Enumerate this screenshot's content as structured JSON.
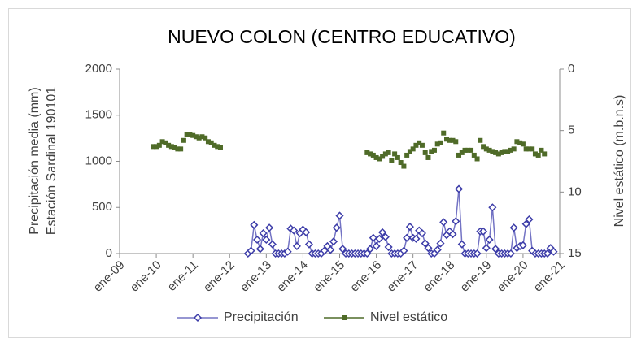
{
  "chart_data": {
    "type": "line",
    "title": "NUEVO COLON (CENTRO EDUCATIVO)",
    "y_label": [
      "Precipitación media (mm)",
      "Estación Sardinal 190101"
    ],
    "y2_label": "Nivel estático (m.b.n.s)",
    "xlim": [
      "2009-01",
      "2021-01"
    ],
    "xticks": [
      {
        "value": "2009-01",
        "label": "ene-09"
      },
      {
        "value": "2010-01",
        "label": "ene-10"
      },
      {
        "value": "2011-01",
        "label": "ene-11"
      },
      {
        "value": "2012-01",
        "label": "ene-12"
      },
      {
        "value": "2013-01",
        "label": "ene-13"
      },
      {
        "value": "2014-01",
        "label": "ene-14"
      },
      {
        "value": "2015-01",
        "label": "ene-15"
      },
      {
        "value": "2016-01",
        "label": "ene-16"
      },
      {
        "value": "2017-01",
        "label": "ene-17"
      },
      {
        "value": "2018-01",
        "label": "ene-18"
      },
      {
        "value": "2019-01",
        "label": "ene-19"
      },
      {
        "value": "2020-01",
        "label": "ene-20"
      },
      {
        "value": "2021-01",
        "label": "ene-21"
      }
    ],
    "ylim": [
      0,
      2000
    ],
    "yticks": [
      0,
      500,
      1000,
      1500,
      2000
    ],
    "y2lim": [
      15,
      0
    ],
    "y2ticks": [
      0,
      5,
      10,
      15
    ],
    "grid": false,
    "legend": "bottom",
    "series": [
      {
        "name": "Precipitación",
        "color": "#7373c4",
        "marker_color": "#3c3ca8",
        "marker": "diamond",
        "line": true,
        "x": [
          "2012-07",
          "2012-08",
          "2012-09",
          "2012-10",
          "2012-11",
          "2012-12",
          "2013-01",
          "2013-02",
          "2013-03",
          "2013-04",
          "2013-05",
          "2013-06",
          "2013-07",
          "2013-08",
          "2013-09",
          "2013-10",
          "2013-11",
          "2013-12",
          "2014-01",
          "2014-02",
          "2014-03",
          "2014-04",
          "2014-05",
          "2014-06",
          "2014-07",
          "2014-08",
          "2014-09",
          "2014-10",
          "2014-11",
          "2014-12",
          "2015-01",
          "2015-02",
          "2015-03",
          "2015-04",
          "2015-05",
          "2015-06",
          "2015-07",
          "2015-08",
          "2015-09",
          "2015-10",
          "2015-11",
          "2015-12",
          "2016-01",
          "2016-02",
          "2016-03",
          "2016-04",
          "2016-05",
          "2016-06",
          "2016-07",
          "2016-08",
          "2016-09",
          "2016-10",
          "2016-11",
          "2016-12",
          "2017-01",
          "2017-02",
          "2017-03",
          "2017-04",
          "2017-05",
          "2017-06",
          "2017-07",
          "2017-08",
          "2017-09",
          "2017-10",
          "2017-11",
          "2017-12",
          "2018-01",
          "2018-02",
          "2018-03",
          "2018-04",
          "2018-05",
          "2018-06",
          "2018-07",
          "2018-08",
          "2018-09",
          "2018-10",
          "2018-11",
          "2018-12",
          "2019-01",
          "2019-02",
          "2019-03",
          "2019-04",
          "2019-05",
          "2019-06",
          "2019-07",
          "2019-08",
          "2019-09",
          "2019-10",
          "2019-11",
          "2019-12",
          "2020-01",
          "2020-02",
          "2020-03",
          "2020-04",
          "2020-05",
          "2020-06",
          "2020-07",
          "2020-08",
          "2020-09",
          "2020-10",
          "2020-11"
        ],
        "values": [
          0,
          30,
          310,
          150,
          50,
          220,
          150,
          280,
          100,
          0,
          0,
          0,
          0,
          20,
          270,
          250,
          80,
          220,
          260,
          230,
          100,
          0,
          0,
          0,
          0,
          30,
          80,
          40,
          130,
          280,
          410,
          50,
          0,
          0,
          0,
          0,
          0,
          0,
          0,
          0,
          50,
          170,
          80,
          160,
          230,
          180,
          70,
          0,
          0,
          0,
          0,
          30,
          170,
          290,
          170,
          160,
          250,
          220,
          110,
          60,
          0,
          0,
          40,
          110,
          340,
          200,
          240,
          210,
          350,
          700,
          100,
          0,
          0,
          0,
          0,
          0,
          240,
          240,
          60,
          150,
          500,
          50,
          0,
          0,
          0,
          0,
          0,
          280,
          60,
          80,
          90,
          320,
          370,
          30,
          0,
          0,
          0,
          0,
          0,
          60,
          20
        ]
      },
      {
        "name": "Nivel estático",
        "color": "#4f6b28",
        "marker_color": "#4f6b28",
        "marker": "square",
        "line": false,
        "axis": "y2",
        "x": [
          "2009-12",
          "2010-01",
          "2010-02",
          "2010-03",
          "2010-04",
          "2010-05",
          "2010-06",
          "2010-07",
          "2010-08",
          "2010-09",
          "2010-10",
          "2010-11",
          "2010-12",
          "2011-01",
          "2011-02",
          "2011-03",
          "2011-04",
          "2011-05",
          "2011-06",
          "2011-07",
          "2011-08",
          "2011-09",
          "2011-10",
          "2015-10",
          "2015-11",
          "2015-12",
          "2016-01",
          "2016-02",
          "2016-03",
          "2016-04",
          "2016-05",
          "2016-06",
          "2016-07",
          "2016-08",
          "2016-09",
          "2016-10",
          "2016-11",
          "2016-12",
          "2017-01",
          "2017-02",
          "2017-03",
          "2017-04",
          "2017-05",
          "2017-06",
          "2017-07",
          "2017-08",
          "2017-09",
          "2017-10",
          "2017-11",
          "2017-12",
          "2018-01",
          "2018-02",
          "2018-03",
          "2018-04",
          "2018-05",
          "2018-06",
          "2018-07",
          "2018-08",
          "2018-09",
          "2018-10",
          "2018-11",
          "2018-12",
          "2019-01",
          "2019-02",
          "2019-03",
          "2019-04",
          "2019-05",
          "2019-06",
          "2019-07",
          "2019-08",
          "2019-09",
          "2019-10",
          "2019-11",
          "2019-12",
          "2020-01",
          "2020-02",
          "2020-03",
          "2020-04",
          "2020-05",
          "2020-06",
          "2020-07",
          "2020-08"
        ],
        "values": [
          6.3,
          6.3,
          6.2,
          5.9,
          6.0,
          6.2,
          6.3,
          6.4,
          6.5,
          6.5,
          5.8,
          5.3,
          5.3,
          5.4,
          5.5,
          5.6,
          5.5,
          5.6,
          5.9,
          6.0,
          6.2,
          6.3,
          6.4,
          6.8,
          6.9,
          7.0,
          7.2,
          7.3,
          7.1,
          6.9,
          6.8,
          7.4,
          6.9,
          7.2,
          7.6,
          7.9,
          7.0,
          6.7,
          6.5,
          6.2,
          6.0,
          6.2,
          6.8,
          7.2,
          6.7,
          6.6,
          6.1,
          6.0,
          5.2,
          5.7,
          5.8,
          5.8,
          5.9,
          7.0,
          6.8,
          6.6,
          6.6,
          6.6,
          7.0,
          7.3,
          5.8,
          6.3,
          6.5,
          6.6,
          6.7,
          6.8,
          6.9,
          6.8,
          6.7,
          6.7,
          6.6,
          6.5,
          5.9,
          6.0,
          6.1,
          6.5,
          6.5,
          6.5,
          6.9,
          7.0,
          6.6,
          6.9
        ]
      }
    ]
  }
}
